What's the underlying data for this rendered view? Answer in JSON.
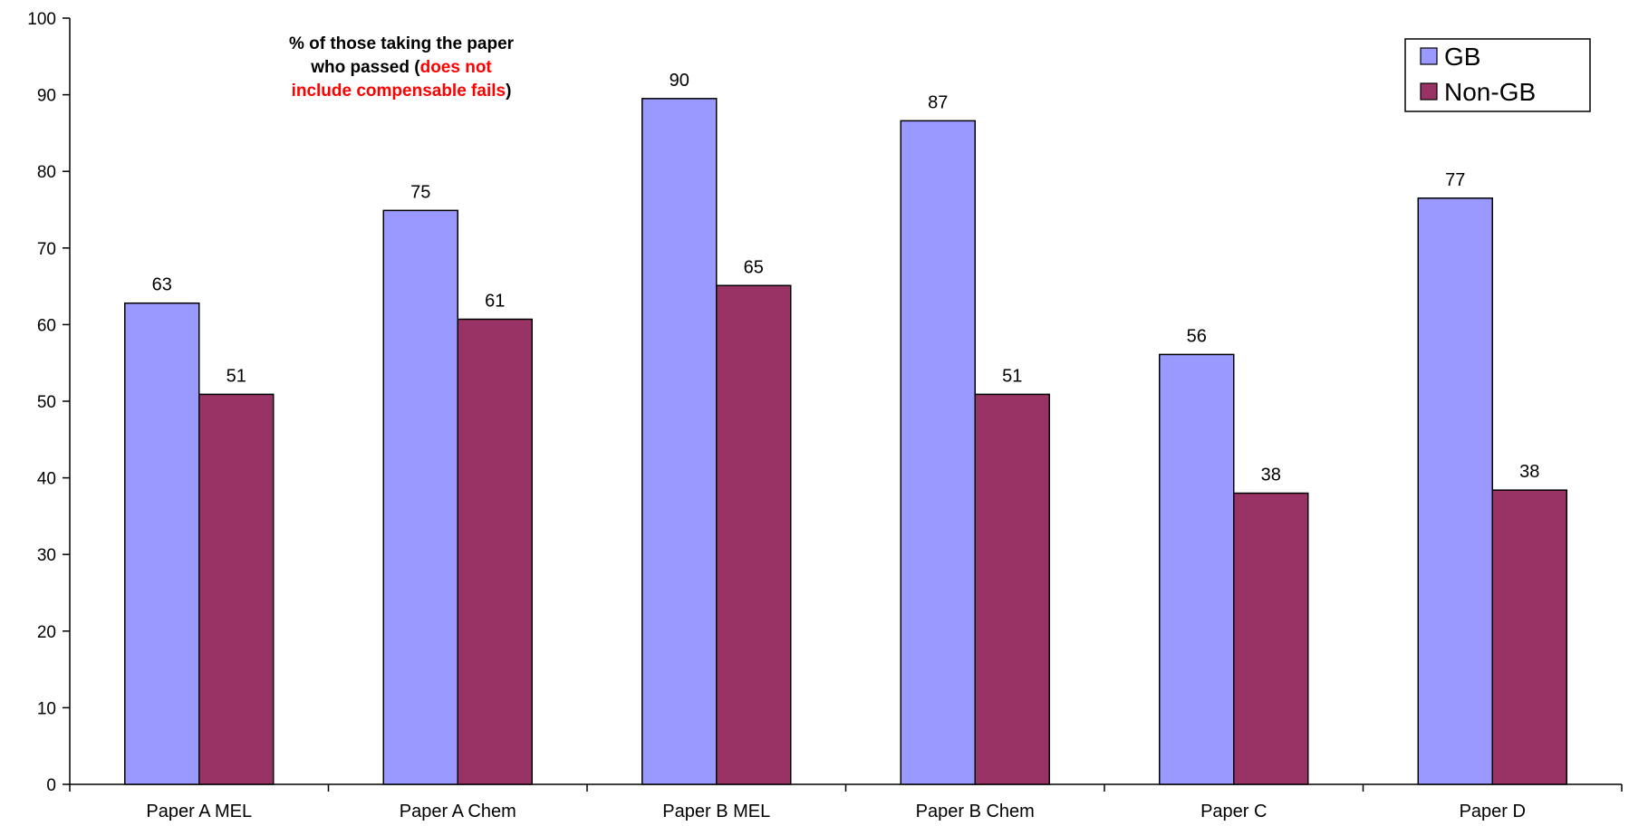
{
  "chart_data": {
    "type": "bar",
    "categories": [
      "Paper A MEL",
      "Paper A Chem",
      "Paper B MEL",
      "Paper B Chem",
      "Paper C",
      "Paper D"
    ],
    "series": [
      {
        "name": "GB",
        "values": [
          63,
          75,
          90,
          87,
          56,
          77
        ],
        "exact": [
          62.8,
          74.9,
          89.5,
          86.6,
          56.1,
          76.5
        ],
        "color": "#9999ff"
      },
      {
        "name": "Non-GB",
        "values": [
          51,
          61,
          65,
          51,
          38,
          38
        ],
        "exact": [
          50.9,
          60.7,
          65.1,
          50.9,
          38.0,
          38.4
        ],
        "color": "#993366"
      }
    ],
    "title": "",
    "xlabel": "",
    "ylabel": "",
    "ylim": [
      0,
      100
    ],
    "yticks": [
      0,
      10,
      20,
      30,
      40,
      50,
      60,
      70,
      80,
      90,
      100
    ],
    "grid": false,
    "legend": "top-right",
    "annotation": {
      "line1": "% of those taking the paper",
      "line2_black": "who passed (",
      "line2_red": "does not",
      "line3_red": "include compensable fails",
      "line3_black": ")"
    }
  }
}
